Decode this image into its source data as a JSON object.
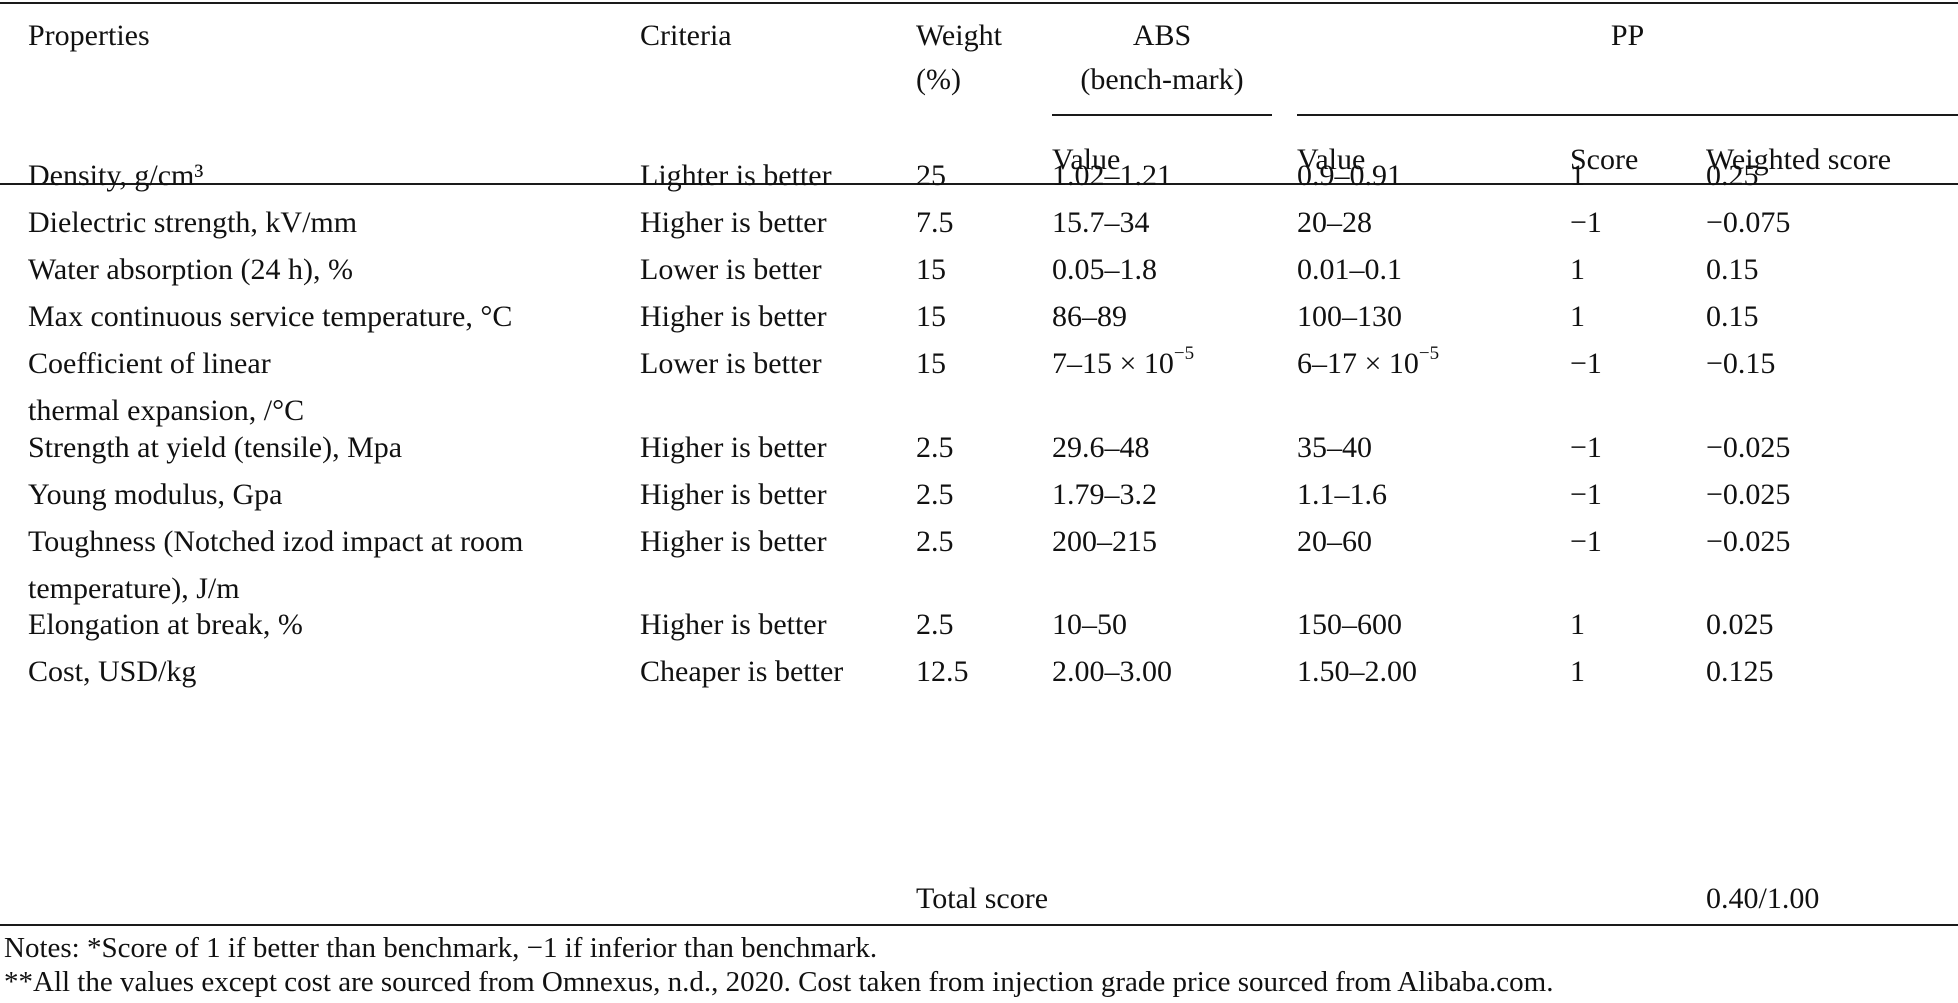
{
  "table": {
    "headers": {
      "properties": "Properties",
      "criteria": "Criteria",
      "weight_line1": "Weight",
      "weight_line2": "(%)",
      "abs_line1": "ABS",
      "abs_line2": "(bench-mark)",
      "pp": "PP",
      "abs_value": "Value",
      "pp_value": "Value",
      "pp_score": "Score",
      "pp_weighted": "Weighted score"
    },
    "rows": [
      {
        "property": [
          "Density, g/cm³"
        ],
        "criteria": "Lighter is better",
        "weight": "25",
        "abs": {
          "text": "1.02–1.21"
        },
        "pp": {
          "text": "0.9–0.91"
        },
        "score": "1",
        "weighted": "0.25"
      },
      {
        "property": [
          "Dielectric strength, kV/mm"
        ],
        "criteria": "Higher is better",
        "weight": "7.5",
        "abs": {
          "text": "15.7–34"
        },
        "pp": {
          "text": "20–28"
        },
        "score": "−1",
        "weighted": "−0.075"
      },
      {
        "property": [
          "Water absorption (24 h), %"
        ],
        "criteria": "Lower is better",
        "weight": "15",
        "abs": {
          "text": "0.05–1.8"
        },
        "pp": {
          "text": "0.01–0.1"
        },
        "score": "1",
        "weighted": "0.15"
      },
      {
        "property": [
          "Max continuous service temperature, °C"
        ],
        "criteria": "Higher is better",
        "weight": "15",
        "abs": {
          "text": "86–89"
        },
        "pp": {
          "text": "100–130"
        },
        "score": "1",
        "weighted": "0.15"
      },
      {
        "property": [
          "Coefficient of linear",
          "thermal expansion, /°C"
        ],
        "criteria": "Lower is better",
        "weight": "15",
        "abs": {
          "text": "7–15 × 10",
          "sup": "−5"
        },
        "pp": {
          "text": "6–17 × 10",
          "sup": "−5"
        },
        "score": "−1",
        "weighted": "−0.15"
      },
      {
        "property": [
          "Strength at yield (tensile), Mpa"
        ],
        "criteria": "Higher is better",
        "weight": "2.5",
        "abs": {
          "text": "29.6–48"
        },
        "pp": {
          "text": "35–40"
        },
        "score": "−1",
        "weighted": "−0.025"
      },
      {
        "property": [
          "Young modulus, Gpa"
        ],
        "criteria": "Higher is better",
        "weight": "2.5",
        "abs": {
          "text": "1.79–3.2"
        },
        "pp": {
          "text": "1.1–1.6"
        },
        "score": "−1",
        "weighted": "−0.025"
      },
      {
        "property": [
          "Toughness (Notched izod impact at room",
          "temperature), J/m"
        ],
        "criteria": "Higher is better",
        "weight": "2.5",
        "abs": {
          "text": "200–215"
        },
        "pp": {
          "text": "20–60"
        },
        "score": "−1",
        "weighted": "−0.025"
      },
      {
        "property": [
          "Elongation at break, %"
        ],
        "criteria": "Higher is better",
        "weight": "2.5",
        "abs": {
          "text": "10–50"
        },
        "pp": {
          "text": "150–600"
        },
        "score": "1",
        "weighted": "0.025"
      },
      {
        "property": [
          "Cost, USD/kg"
        ],
        "criteria": "Cheaper is better",
        "weight": "12.5",
        "abs": {
          "text": "2.00–3.00"
        },
        "pp": {
          "text": "1.50–2.00"
        },
        "score": "1",
        "weighted": "0.125"
      }
    ],
    "total": {
      "label": "Total score",
      "value": "0.40/1.00"
    }
  },
  "notes": [
    "Notes: *Score of 1 if better than benchmark, −1 if inferior than benchmark.",
    "**All the values except cost are sourced from Omnexus, n.d., 2020. Cost taken from injection grade price sourced from Alibaba.com."
  ]
}
